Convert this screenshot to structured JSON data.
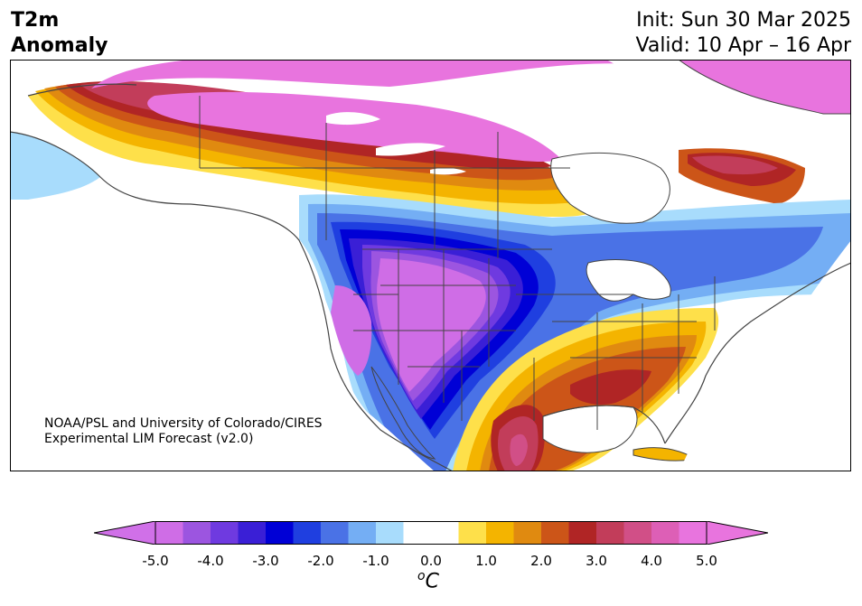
{
  "title": {
    "line1": "T2m",
    "line2": "Anomaly"
  },
  "init": {
    "line1": "Init: Sun 30 Mar 2025",
    "line2": "Valid: 10 Apr – 16 Apr"
  },
  "credit": {
    "line1": "NOAA/PSL and University of Colorado/CIRES",
    "line2": "Experimental LIM Forecast (v2.0)"
  },
  "colorbar": {
    "unit_symbol": "o",
    "unit_letter": "C",
    "ticks": [
      "-5.0",
      "-4.0",
      "-3.0",
      "-2.0",
      "-1.0",
      "0.0",
      "1.0",
      "2.0",
      "3.0",
      "4.0",
      "5.0"
    ],
    "colors": [
      "#cf6de6",
      "#9c55e0",
      "#6f3ae0",
      "#3a1fd6",
      "#0000d6",
      "#1f3fe0",
      "#4a72e6",
      "#74aef4",
      "#a8dcfc",
      "#ffffff",
      "#ffffff",
      "#fee04a",
      "#f4b400",
      "#e08a10",
      "#cc5518",
      "#b02525",
      "#c23d5a",
      "#d14f87",
      "#dd5fb6",
      "#e874de"
    ],
    "under_color": "#d070e8",
    "over_color": "#e874de"
  },
  "colors": {
    "land_boundary": "#444444",
    "water": "#ffffff"
  }
}
